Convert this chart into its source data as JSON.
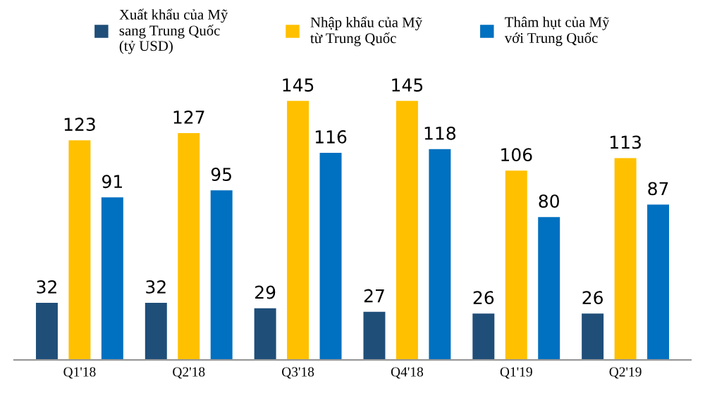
{
  "chart_data": {
    "type": "bar",
    "categories": [
      "Q1'18",
      "Q2'18",
      "Q3'18",
      "Q4'18",
      "Q1'19",
      "Q2'19"
    ],
    "series": [
      {
        "name": "Xuất khẩu của Mỹ\nsang Trung Quốc\n(tỷ USD)",
        "color": "#1f4e79",
        "values": [
          32,
          32,
          29,
          27,
          26,
          26
        ]
      },
      {
        "name": "Nhập khẩu của Mỹ\ntừ Trung Quốc",
        "color": "#ffc000",
        "values": [
          123,
          127,
          145,
          145,
          106,
          113
        ]
      },
      {
        "name": "Thâm hụt của Mỹ\nvới Trung Quốc",
        "color": "#0070c0",
        "values": [
          91,
          95,
          116,
          118,
          80,
          87
        ]
      }
    ],
    "data_labels": true,
    "legend": "top",
    "grid": false
  }
}
